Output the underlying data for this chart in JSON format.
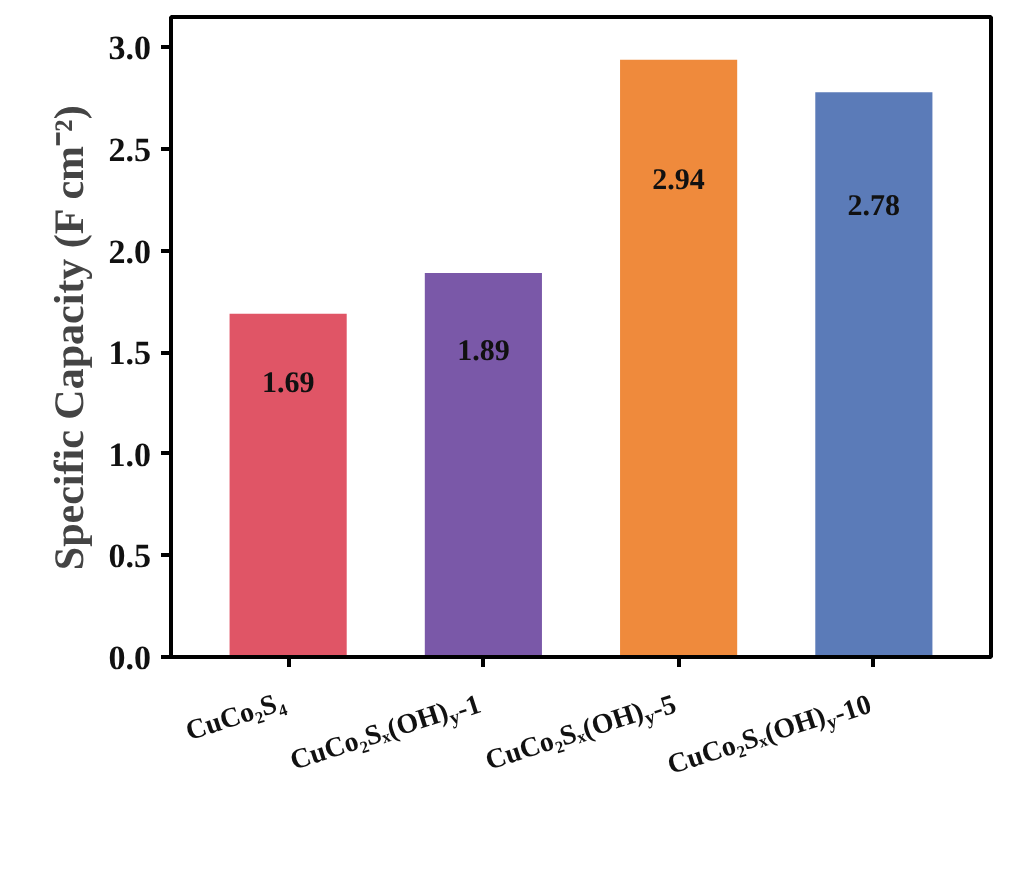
{
  "chart_data": {
    "type": "bar",
    "ylabel": "Specific Capacity (F cm⁻²)",
    "categories": [
      "CuCo₂S₄",
      "CuCo₂Sₓ(OH)$_{y}$-1",
      "CuCo₂Sₓ(OH)$_{y}$-5",
      "CuCo₂Sₓ(OH)$_{y}$-10"
    ],
    "values": [
      1.69,
      1.89,
      2.94,
      2.78
    ],
    "colors": [
      "#e05566",
      "#7a58a8",
      "#ef8a3c",
      "#5b7bb8"
    ],
    "data_labels": true,
    "ylim": [
      0,
      3.15
    ],
    "yticks": [
      {
        "value": 0,
        "label": "0.0"
      },
      {
        "value": 0.5,
        "label": "0.5"
      },
      {
        "value": 1,
        "label": "1.0"
      },
      {
        "value": 1.5,
        "label": "1.5"
      },
      {
        "value": 2,
        "label": "2.0"
      },
      {
        "value": 2.5,
        "label": "2.5"
      },
      {
        "value": 3,
        "label": "3.0"
      }
    ],
    "grid": false
  }
}
